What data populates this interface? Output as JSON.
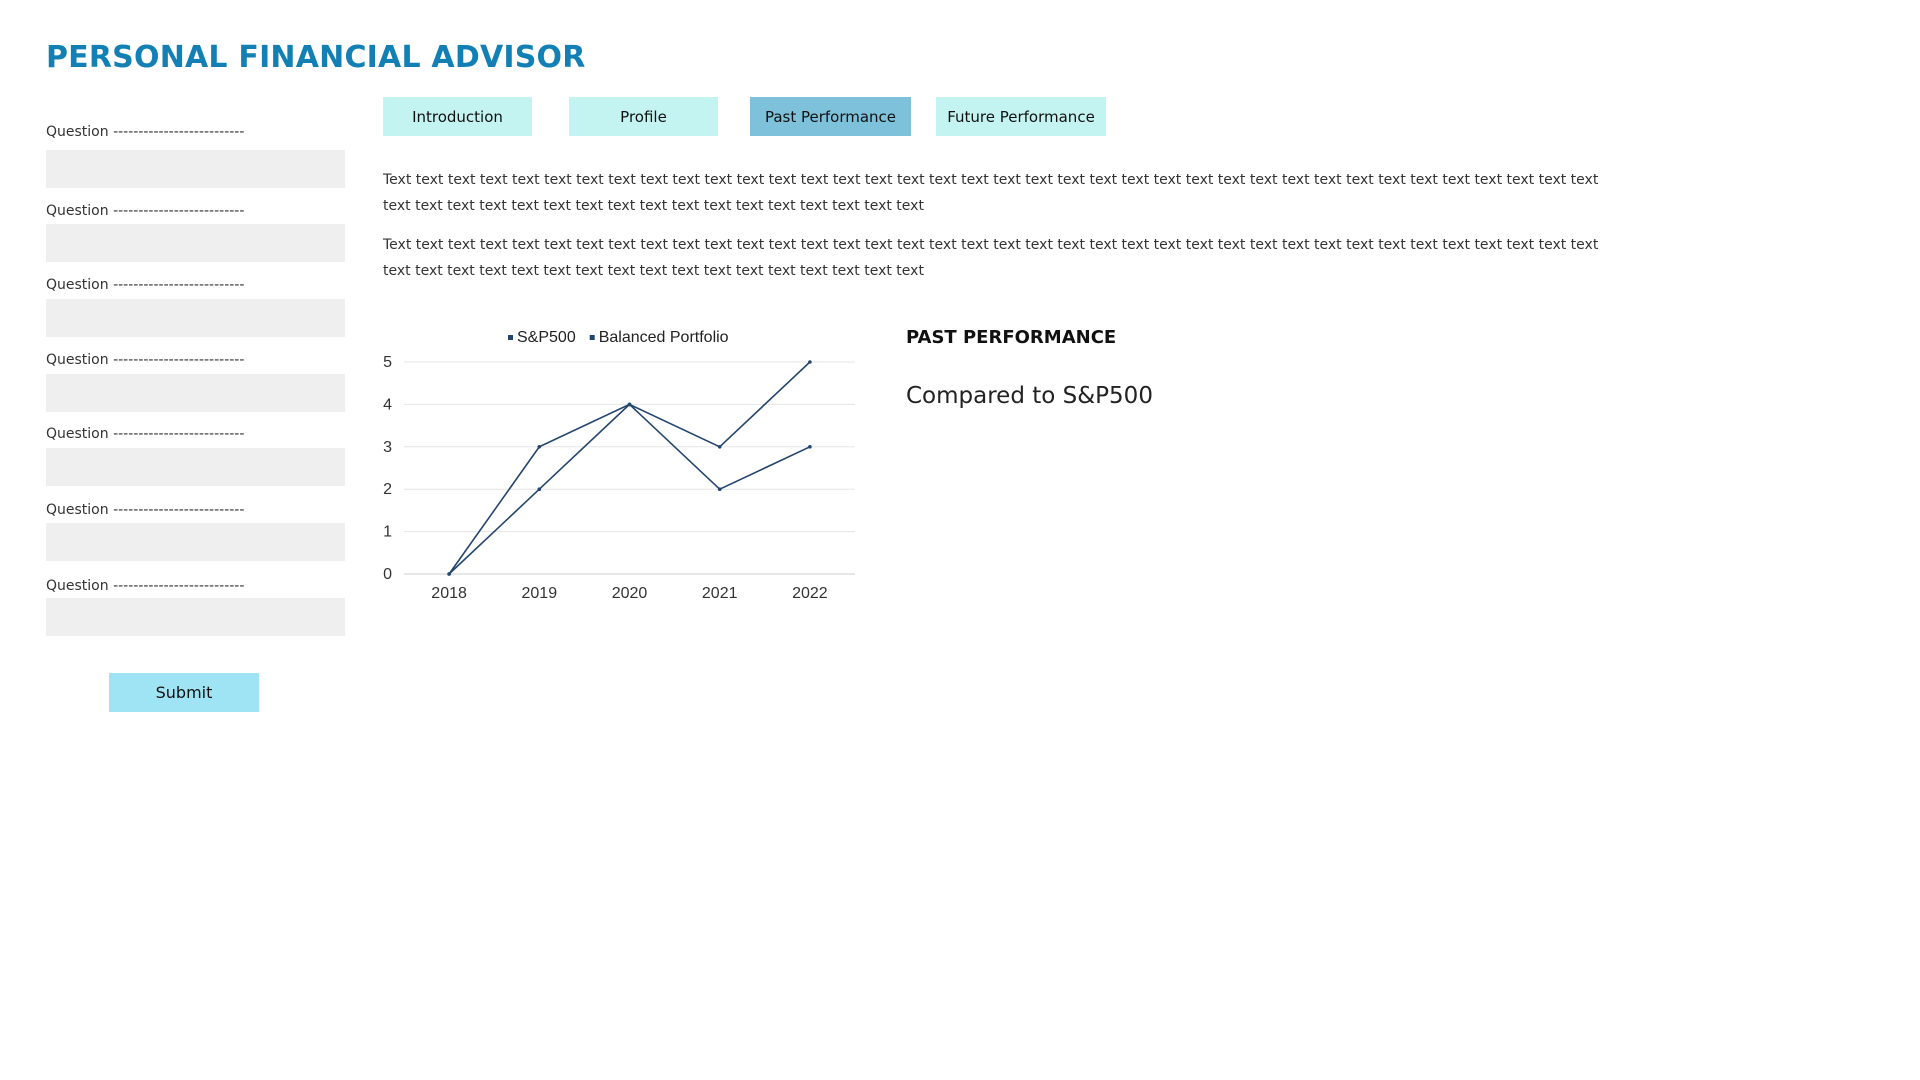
{
  "app": {
    "title": "PERSONAL FINANCIAL ADVISOR"
  },
  "form": {
    "questions": [
      {
        "label": "Question --------------------------",
        "value": ""
      },
      {
        "label": "Question --------------------------",
        "value": ""
      },
      {
        "label": "Question --------------------------",
        "value": ""
      },
      {
        "label": "Question --------------------------",
        "value": ""
      },
      {
        "label": "Question --------------------------",
        "value": ""
      },
      {
        "label": "Question --------------------------",
        "value": ""
      },
      {
        "label": "Question --------------------------",
        "value": ""
      }
    ],
    "submit_label": "Submit"
  },
  "tabs": [
    {
      "label": "Introduction",
      "active": false
    },
    {
      "label": "Profile",
      "active": false
    },
    {
      "label": "Past Performance",
      "active": true
    },
    {
      "label": "Future Performance",
      "active": false
    }
  ],
  "content": {
    "paragraphs": [
      "Text text text text text text text text text text text text text text text text text text text text text text text text text text text text text text text text text text text text text text text text text text text text text text text text text text text text text text text",
      "Text text text text text text text text text text text text text text text text text text text text text text text text text text text text text text text text text text text text text text text text text text text text text text text text text text text text text text text"
    ],
    "section_title": "PAST PERFORMANCE",
    "section_subtitle": "Compared to S&P500"
  },
  "colors": {
    "accent": "#1280b4",
    "tab_bg": "#c4f4f1",
    "tab_active_bg": "#7dc1db",
    "submit_bg": "#9fe4f5",
    "input_bg": "#efefef",
    "line_color": "#24466e"
  },
  "chart_data": {
    "type": "line",
    "categories": [
      "2018",
      "2019",
      "2020",
      "2021",
      "2022"
    ],
    "series": [
      {
        "name": "S&P500",
        "values": [
          0,
          3,
          4,
          3,
          5
        ]
      },
      {
        "name": "Balanced Portfolio",
        "values": [
          0,
          2,
          4,
          2,
          3
        ]
      }
    ],
    "ylim": [
      0,
      5
    ],
    "yticks": [
      "0",
      "1",
      "2",
      "3",
      "4",
      "5"
    ],
    "grid": true,
    "legend": "top"
  }
}
